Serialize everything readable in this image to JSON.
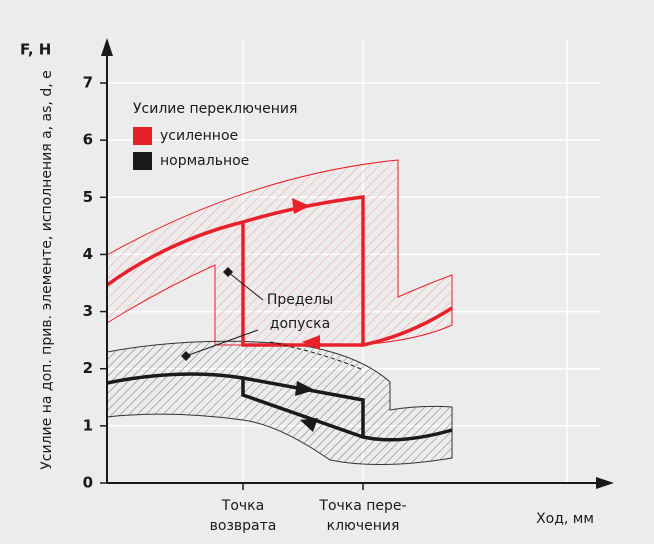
{
  "chart_data": {
    "type": "line",
    "y_unit": "F, H",
    "y_label": "Усилие на доп. прив. элементе, исполнения a, as, d, e",
    "x_label": "Ход, мм",
    "ylim": [
      0,
      7
    ],
    "yticks": [
      0,
      1,
      2,
      3,
      4,
      5,
      6,
      7
    ],
    "grid": true,
    "x_points": [
      [
        "Точка",
        "возврата"
      ],
      [
        "Точка пере-",
        "ключения"
      ]
    ],
    "legend_title": "Усилие переключения",
    "legend": [
      {
        "name": "усиленное",
        "color": "#e8202a"
      },
      {
        "name": "нормальное",
        "color": "#1a1a1a"
      }
    ],
    "annotation": [
      "Пределы",
      "допуска"
    ]
  }
}
